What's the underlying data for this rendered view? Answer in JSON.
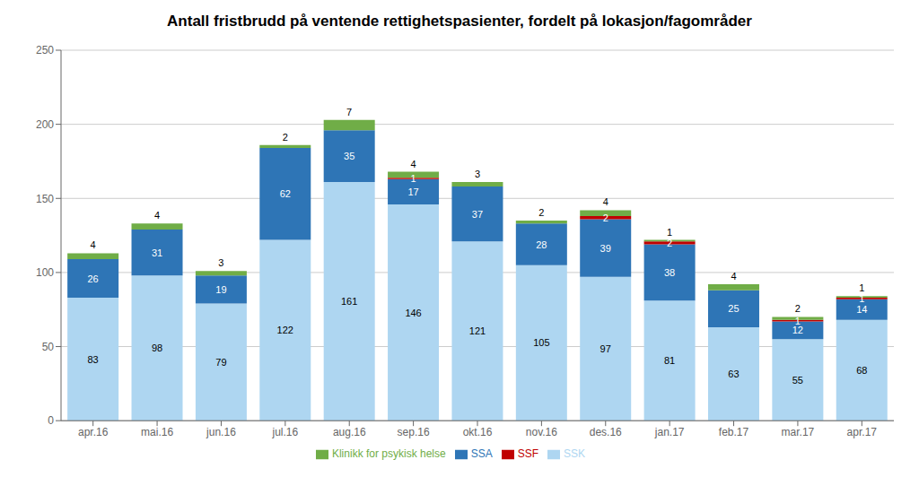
{
  "chart_data": {
    "type": "bar",
    "title": "Antall fristbrudd på ventende rettighetspasienter, fordelt på lokasjon/fagområder",
    "categories": [
      "apr.16",
      "mai.16",
      "jun.16",
      "jul.16",
      "aug.16",
      "sep.16",
      "okt.16",
      "nov.16",
      "des.16",
      "jan.17",
      "feb.17",
      "mar.17",
      "apr.17"
    ],
    "series": [
      {
        "name": "SSK",
        "color": "#AED6F1",
        "values": [
          83,
          98,
          79,
          122,
          161,
          146,
          121,
          105,
          97,
          81,
          63,
          55,
          68
        ]
      },
      {
        "name": "SSA",
        "color": "#2E75B6",
        "values": [
          26,
          31,
          19,
          62,
          35,
          17,
          37,
          28,
          39,
          38,
          25,
          12,
          14
        ]
      },
      {
        "name": "SSF",
        "color": "#C00000",
        "values": [
          0,
          0,
          0,
          0,
          0,
          1,
          0,
          0,
          2,
          2,
          0,
          1,
          1
        ]
      },
      {
        "name": "Klinikk for psykisk helse",
        "color": "#70AD47",
        "values": [
          4,
          4,
          3,
          2,
          7,
          4,
          3,
          2,
          4,
          1,
          4,
          2,
          1
        ]
      }
    ],
    "ylim": [
      0,
      250
    ],
    "yticks": [
      0,
      50,
      100,
      150,
      200,
      250
    ],
    "grid": true,
    "stacked": true,
    "data_labels": true,
    "legend": "bottom"
  }
}
